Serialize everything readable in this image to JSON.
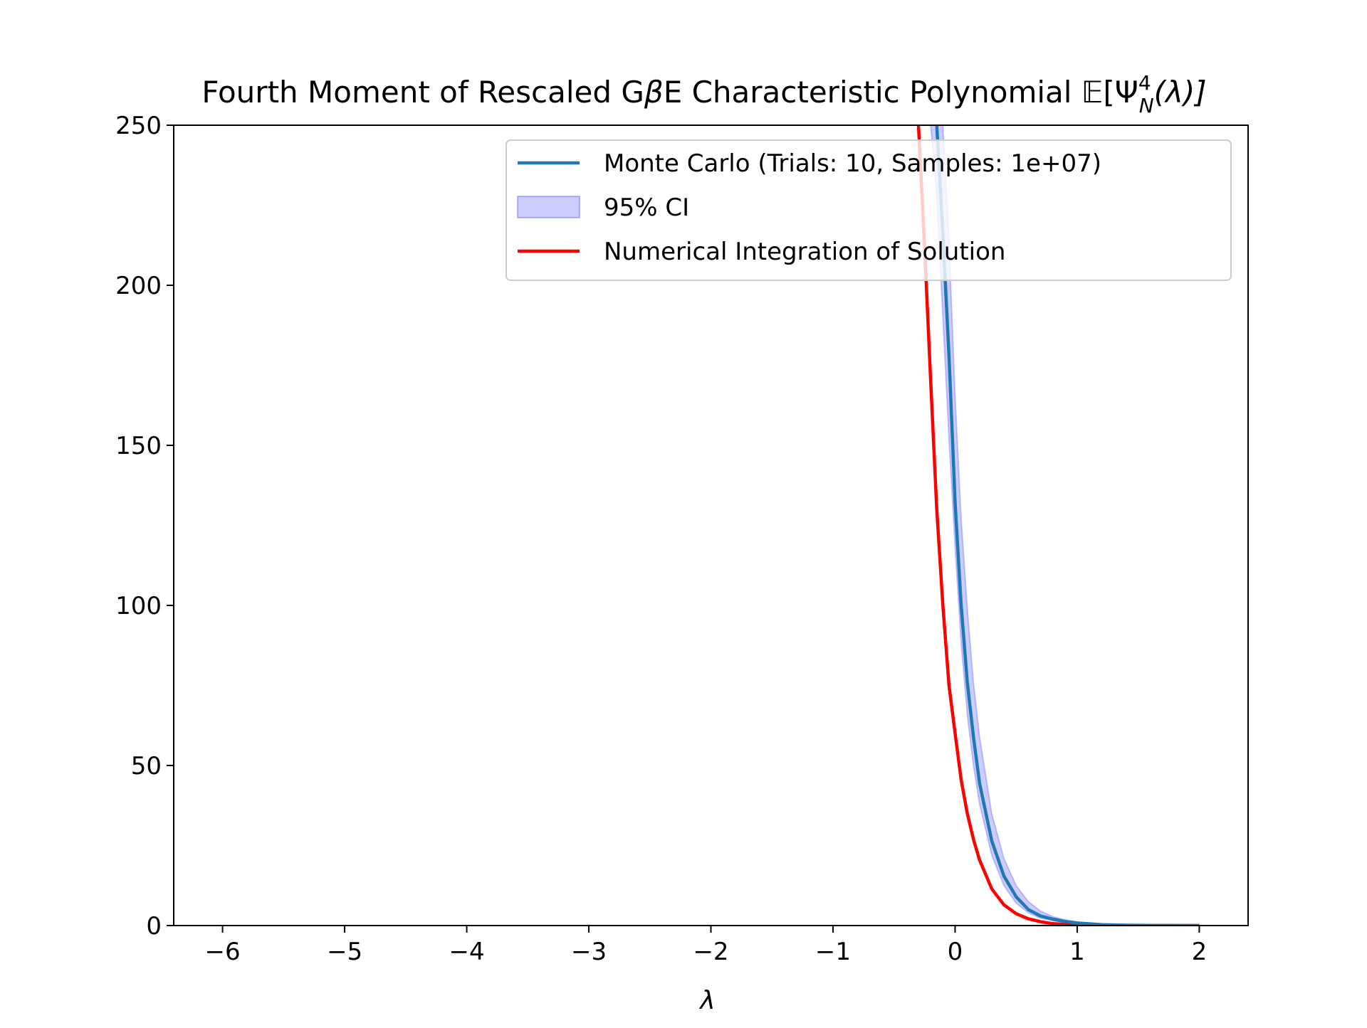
{
  "chart_data": {
    "type": "line",
    "title": "Fourth Moment of Rescaled GβE Characteristic Polynomial 𝔼[Ψ⁴ₙ(λ)]",
    "title_parts": {
      "prefix": "Fourth Moment of Rescaled G",
      "beta": "β",
      "mid": "E Characteristic Polynomial ",
      "expect": "𝔼",
      "open": "[Ψ",
      "sup": "4",
      "sub": "N",
      "arg": "(λ)]"
    },
    "xlabel": "λ",
    "ylabel": "",
    "xlim": [
      -6.4,
      2.4
    ],
    "ylim": [
      0,
      250
    ],
    "x_ticks": [
      -6,
      -5,
      -4,
      -3,
      -2,
      -1,
      0,
      1,
      2
    ],
    "x_tick_labels": [
      "−6",
      "−5",
      "−4",
      "−3",
      "−2",
      "−1",
      "0",
      "1",
      "2"
    ],
    "y_ticks": [
      0,
      50,
      100,
      150,
      200,
      250
    ],
    "y_tick_labels": [
      "0",
      "50",
      "100",
      "150",
      "200",
      "250"
    ],
    "grid": false,
    "legend_position": "top-right",
    "series": [
      {
        "name": "Monte Carlo (Trials: 10, Samples: 1e+07)",
        "kind": "line",
        "color": "#1f77b4",
        "x": [
          -0.15,
          -0.1,
          -0.05,
          0.0,
          0.05,
          0.1,
          0.15,
          0.2,
          0.3,
          0.4,
          0.5,
          0.6,
          0.7,
          0.8,
          0.9,
          1.0,
          1.2,
          1.4,
          1.6,
          2.0
        ],
        "y": [
          250,
          216,
          178,
          132,
          100,
          76,
          59,
          44.5,
          26.5,
          15.5,
          9,
          5,
          3,
          2,
          1.3,
          0.8,
          0.3,
          0.1,
          0.05,
          0.0
        ]
      },
      {
        "name": "95% CI",
        "kind": "band",
        "color": "#0000ff",
        "x": [
          -0.2,
          -0.15,
          -0.1,
          -0.05,
          0.0,
          0.05,
          0.1,
          0.15,
          0.2,
          0.3,
          0.4,
          0.5,
          0.6,
          0.7,
          0.8,
          0.9,
          1.0,
          1.2,
          1.4,
          1.6,
          2.0
        ],
        "lower": [
          250,
          228,
          190,
          152,
          118,
          88,
          66,
          50,
          38,
          22,
          12.5,
          7,
          4,
          2.3,
          1.5,
          0.9,
          0.5,
          0.15,
          0.05,
          0.02,
          0.0
        ],
        "upper": [
          250,
          250,
          250,
          214,
          165,
          127,
          99,
          76,
          59,
          35,
          21,
          12.5,
          7.5,
          4.5,
          2.8,
          1.8,
          1.1,
          0.45,
          0.2,
          0.08,
          0.0
        ]
      },
      {
        "name": "Numerical Integration of Solution",
        "kind": "line",
        "color": "#ff0000",
        "x": [
          -0.3,
          -0.25,
          -0.2,
          -0.15,
          -0.1,
          -0.05,
          0.0,
          0.05,
          0.1,
          0.15,
          0.2,
          0.3,
          0.4,
          0.5,
          0.6,
          0.7,
          0.8,
          0.9,
          1.0,
          1.2,
          1.4,
          1.6,
          2.0
        ],
        "y": [
          250,
          212,
          170,
          130,
          100,
          75,
          60,
          45.5,
          35,
          27,
          20.5,
          11.5,
          6.5,
          3.7,
          2.1,
          1.2,
          0.6,
          0.35,
          0.2,
          0.05,
          0.02,
          0.0,
          0.0
        ]
      }
    ]
  }
}
